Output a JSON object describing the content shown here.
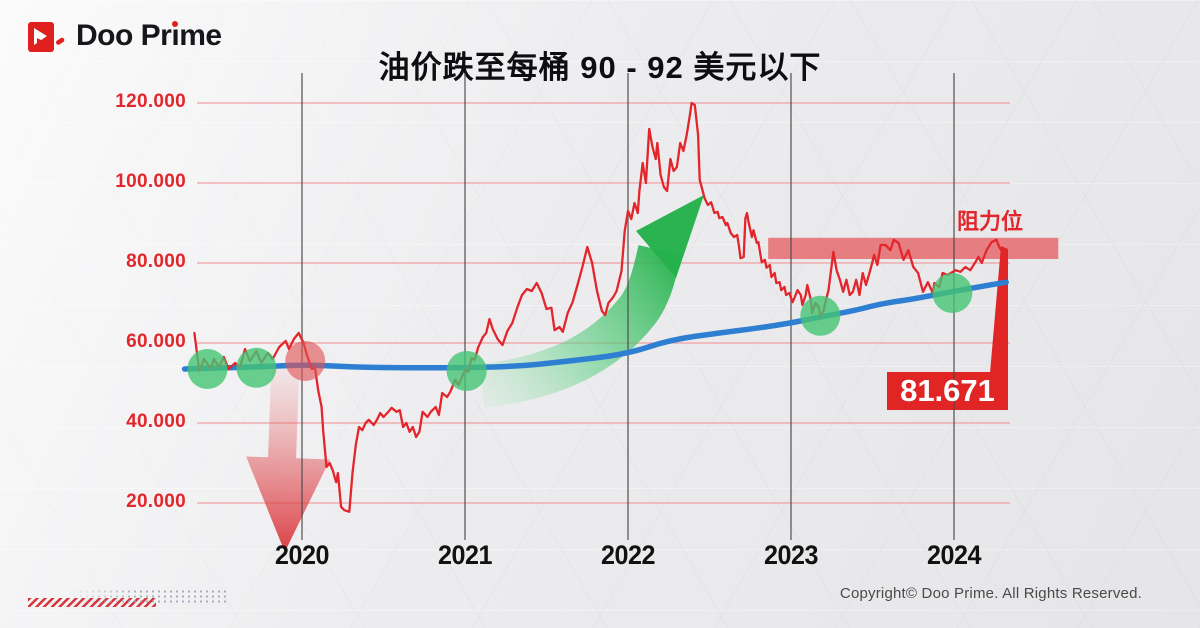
{
  "brand": {
    "name": "Doo Prime",
    "wordmark_prefix": "Doo Pr",
    "wordmark_i_stem": "ı",
    "wordmark_suffix": "me"
  },
  "title": "油价跌至每桶 90 - 92 美元以下",
  "footer": {
    "copyright": "Copyright© Doo Prime. All Rights Reserved."
  },
  "colors": {
    "accent_red": "#e2262b",
    "price_line": "#e2262b",
    "ma_line": "#2e7fd2",
    "grid_pink": "#f0a0a3",
    "vline_gray": "#4a4a4a",
    "marker_green": "#45c474",
    "marker_red": "#e05252",
    "band_red": "#e4595e",
    "callout_red": "#e02524",
    "arrow_green": "#25b14b",
    "arrow_red": "#d92d32"
  },
  "chart_data": {
    "type": "line",
    "title": "油价跌至每桶 90 - 92 美元以下",
    "xlabel": "",
    "ylabel": "",
    "y_axis": {
      "range": [
        12,
        128
      ],
      "ticks": [
        {
          "label": "120.000",
          "value": 120
        },
        {
          "label": "100.000",
          "value": 100
        },
        {
          "label": "80.000",
          "value": 80
        },
        {
          "label": "60.000",
          "value": 60
        },
        {
          "label": "40.000",
          "value": 40
        },
        {
          "label": "20.000",
          "value": 20
        }
      ]
    },
    "x_axis": {
      "range": [
        2019.28,
        2024.64
      ],
      "ticks": [
        {
          "label": "2020",
          "year": 2020
        },
        {
          "label": "2021",
          "year": 2021
        },
        {
          "label": "2022",
          "year": 2022
        },
        {
          "label": "2023",
          "year": 2023
        },
        {
          "label": "2024",
          "year": 2024
        }
      ]
    },
    "series": [
      {
        "name": "oil-price",
        "color_key": "price_line",
        "points": [
          [
            2019.34,
            62.5
          ],
          [
            2019.37,
            53
          ],
          [
            2019.4,
            56
          ],
          [
            2019.44,
            53.5
          ],
          [
            2019.46,
            56
          ],
          [
            2019.49,
            54
          ],
          [
            2019.52,
            56.5
          ],
          [
            2019.55,
            53.5
          ],
          [
            2019.59,
            55
          ],
          [
            2019.62,
            54
          ],
          [
            2019.65,
            58.5
          ],
          [
            2019.68,
            55.5
          ],
          [
            2019.72,
            58
          ],
          [
            2019.75,
            55
          ],
          [
            2019.79,
            57.5
          ],
          [
            2019.82,
            56
          ],
          [
            2019.86,
            59
          ],
          [
            2019.9,
            60.5
          ],
          [
            2019.92,
            58.5
          ],
          [
            2019.95,
            61
          ],
          [
            2019.98,
            62.5
          ],
          [
            2020.01,
            60
          ],
          [
            2020.03,
            57
          ],
          [
            2020.06,
            53.5
          ],
          [
            2020.08,
            53.8
          ],
          [
            2020.1,
            48
          ],
          [
            2020.12,
            44
          ],
          [
            2020.13,
            38
          ],
          [
            2020.15,
            29
          ],
          [
            2020.17,
            30
          ],
          [
            2020.19,
            28
          ],
          [
            2020.2,
            26.5
          ],
          [
            2020.21,
            25.2
          ],
          [
            2020.22,
            27.5
          ],
          [
            2020.24,
            19
          ],
          [
            2020.26,
            18.2
          ],
          [
            2020.29,
            17.8
          ],
          [
            2020.31,
            27.5
          ],
          [
            2020.33,
            34.5
          ],
          [
            2020.35,
            39
          ],
          [
            2020.37,
            38.2
          ],
          [
            2020.39,
            40
          ],
          [
            2020.41,
            40.8
          ],
          [
            2020.44,
            39.5
          ],
          [
            2020.46,
            40.8
          ],
          [
            2020.48,
            42.5
          ],
          [
            2020.5,
            41.5
          ],
          [
            2020.53,
            42.8
          ],
          [
            2020.55,
            43.8
          ],
          [
            2020.58,
            42.8
          ],
          [
            2020.6,
            43.2
          ],
          [
            2020.62,
            39
          ],
          [
            2020.64,
            40
          ],
          [
            2020.66,
            37.8
          ],
          [
            2020.68,
            39
          ],
          [
            2020.7,
            36.5
          ],
          [
            2020.72,
            37.8
          ],
          [
            2020.74,
            42.8
          ],
          [
            2020.77,
            41.5
          ],
          [
            2020.79,
            42.8
          ],
          [
            2020.82,
            44
          ],
          [
            2020.84,
            42
          ],
          [
            2020.86,
            47.5
          ],
          [
            2020.89,
            46.5
          ],
          [
            2020.91,
            47.8
          ],
          [
            2020.94,
            50.8
          ],
          [
            2020.96,
            49.5
          ],
          [
            2021.0,
            53.2
          ],
          [
            2021.02,
            52.8
          ],
          [
            2021.04,
            56.2
          ],
          [
            2021.06,
            55.8
          ],
          [
            2021.08,
            58.8
          ],
          [
            2021.11,
            61.5
          ],
          [
            2021.13,
            62.5
          ],
          [
            2021.15,
            66
          ],
          [
            2021.17,
            63.5
          ],
          [
            2021.2,
            61
          ],
          [
            2021.23,
            59.5
          ],
          [
            2021.26,
            63
          ],
          [
            2021.29,
            65
          ],
          [
            2021.32,
            68.8
          ],
          [
            2021.35,
            72
          ],
          [
            2021.38,
            73.5
          ],
          [
            2021.41,
            73
          ],
          [
            2021.44,
            75
          ],
          [
            2021.47,
            72.5
          ],
          [
            2021.5,
            68.5
          ],
          [
            2021.53,
            68.8
          ],
          [
            2021.55,
            63.2
          ],
          [
            2021.58,
            64
          ],
          [
            2021.6,
            62.8
          ],
          [
            2021.63,
            67.5
          ],
          [
            2021.66,
            70.2
          ],
          [
            2021.69,
            74.5
          ],
          [
            2021.72,
            79
          ],
          [
            2021.75,
            84
          ],
          [
            2021.78,
            80
          ],
          [
            2021.81,
            73
          ],
          [
            2021.84,
            68
          ],
          [
            2021.86,
            67
          ],
          [
            2021.88,
            70
          ],
          [
            2021.91,
            71.5
          ],
          [
            2021.93,
            73
          ],
          [
            2021.96,
            78
          ],
          [
            2021.98,
            88
          ],
          [
            2022.0,
            93
          ],
          [
            2022.02,
            91
          ],
          [
            2022.04,
            95
          ],
          [
            2022.06,
            92.5
          ],
          [
            2022.07,
            98
          ],
          [
            2022.09,
            105
          ],
          [
            2022.11,
            100
          ],
          [
            2022.13,
            113.5
          ],
          [
            2022.15,
            109
          ],
          [
            2022.17,
            106
          ],
          [
            2022.18,
            110
          ],
          [
            2022.2,
            102
          ],
          [
            2022.22,
            99
          ],
          [
            2022.24,
            98
          ],
          [
            2022.26,
            106
          ],
          [
            2022.28,
            103
          ],
          [
            2022.3,
            104
          ],
          [
            2022.32,
            110
          ],
          [
            2022.34,
            108
          ],
          [
            2022.36,
            112
          ],
          [
            2022.38,
            117
          ],
          [
            2022.39,
            120
          ],
          [
            2022.41,
            119.5
          ],
          [
            2022.43,
            112
          ],
          [
            2022.44,
            100.8
          ],
          [
            2022.47,
            96.2
          ],
          [
            2022.49,
            94.5
          ],
          [
            2022.51,
            95.2
          ],
          [
            2022.53,
            92.5
          ],
          [
            2022.55,
            92.8
          ],
          [
            2022.56,
            91.2
          ],
          [
            2022.58,
            91.5
          ],
          [
            2022.6,
            89.5
          ],
          [
            2022.61,
            90
          ],
          [
            2022.63,
            87.5
          ],
          [
            2022.65,
            86.5
          ],
          [
            2022.67,
            87
          ],
          [
            2022.68,
            84.5
          ],
          [
            2022.69,
            81.2
          ],
          [
            2022.71,
            81.5
          ],
          [
            2022.72,
            91.2
          ],
          [
            2022.73,
            92.5
          ],
          [
            2022.74,
            90.2
          ],
          [
            2022.76,
            86.5
          ],
          [
            2022.77,
            88.2
          ],
          [
            2022.79,
            85
          ],
          [
            2022.8,
            85.2
          ],
          [
            2022.82,
            80.2
          ],
          [
            2022.84,
            80.8
          ],
          [
            2022.85,
            78.8
          ],
          [
            2022.87,
            79.5
          ],
          [
            2022.88,
            76.5
          ],
          [
            2022.9,
            77.5
          ],
          [
            2022.91,
            75
          ],
          [
            2022.93,
            75.2
          ],
          [
            2022.94,
            73.2
          ],
          [
            2022.96,
            74
          ],
          [
            2022.97,
            72
          ],
          [
            2022.99,
            72.5
          ],
          [
            2023.01,
            70.2
          ],
          [
            2023.02,
            71.2
          ],
          [
            2023.04,
            73.2
          ],
          [
            2023.06,
            72
          ],
          [
            2023.07,
            69.5
          ],
          [
            2023.09,
            72
          ],
          [
            2023.1,
            74.5
          ],
          [
            2023.12,
            71
          ],
          [
            2023.13,
            67.5
          ],
          [
            2023.15,
            70
          ],
          [
            2023.17,
            69
          ],
          [
            2023.18,
            66.5
          ],
          [
            2023.2,
            68
          ],
          [
            2023.21,
            70
          ],
          [
            2023.23,
            73.2
          ],
          [
            2023.26,
            82.8
          ],
          [
            2023.28,
            78.2
          ],
          [
            2023.3,
            75.8
          ],
          [
            2023.32,
            72.8
          ],
          [
            2023.34,
            75.8
          ],
          [
            2023.36,
            72
          ],
          [
            2023.38,
            72.8
          ],
          [
            2023.4,
            75.8
          ],
          [
            2023.42,
            72
          ],
          [
            2023.44,
            77.5
          ],
          [
            2023.46,
            74.5
          ],
          [
            2023.49,
            78.8
          ],
          [
            2023.51,
            82
          ],
          [
            2023.53,
            79.5
          ],
          [
            2023.55,
            84.5
          ],
          [
            2023.58,
            84.5
          ],
          [
            2023.61,
            83.2
          ],
          [
            2023.63,
            85.8
          ],
          [
            2023.66,
            85
          ],
          [
            2023.69,
            80.8
          ],
          [
            2023.72,
            83.2
          ],
          [
            2023.75,
            79
          ],
          [
            2023.78,
            77.5
          ],
          [
            2023.81,
            72.8
          ],
          [
            2023.84,
            75.2
          ],
          [
            2023.87,
            72.5
          ],
          [
            2023.88,
            75
          ],
          [
            2023.91,
            74
          ],
          [
            2023.93,
            77.5
          ],
          [
            2023.96,
            77
          ],
          [
            2024.01,
            78.2
          ],
          [
            2024.04,
            77.8
          ],
          [
            2024.07,
            79
          ],
          [
            2024.1,
            78.2
          ],
          [
            2024.12,
            79.5
          ],
          [
            2024.15,
            81.5
          ],
          [
            2024.17,
            80
          ],
          [
            2024.2,
            83.2
          ],
          [
            2024.23,
            85.2
          ],
          [
            2024.26,
            85.8
          ],
          [
            2024.28,
            83.8
          ],
          [
            2024.3,
            82.5
          ],
          [
            2024.31,
            81.671
          ]
        ]
      },
      {
        "name": "moving-average",
        "color_key": "ma_line",
        "points": [
          [
            2019.28,
            53.5
          ],
          [
            2019.74,
            54
          ],
          [
            2020.02,
            54.6
          ],
          [
            2020.29,
            54
          ],
          [
            2020.6,
            53.8
          ],
          [
            2021.0,
            53.8
          ],
          [
            2021.34,
            54.2
          ],
          [
            2021.64,
            55.5
          ],
          [
            2021.99,
            57.2
          ],
          [
            2022.26,
            60.8
          ],
          [
            2022.56,
            62.5
          ],
          [
            2022.81,
            63.8
          ],
          [
            2023.0,
            65
          ],
          [
            2023.18,
            66.5
          ],
          [
            2023.4,
            68.2
          ],
          [
            2023.55,
            69.8
          ],
          [
            2023.75,
            71
          ],
          [
            2023.98,
            72.8
          ],
          [
            2024.15,
            74
          ],
          [
            2024.32,
            75.2
          ]
        ]
      }
    ],
    "markers": [
      {
        "shape": "circle",
        "color_key": "marker_green",
        "year": 2019.42,
        "value": 53.5
      },
      {
        "shape": "circle",
        "color_key": "marker_green",
        "year": 2019.72,
        "value": 53.8
      },
      {
        "shape": "circle",
        "color_key": "marker_red",
        "year": 2020.02,
        "value": 55.5
      },
      {
        "shape": "circle",
        "color_key": "marker_green",
        "year": 2021.01,
        "value": 53
      },
      {
        "shape": "circle",
        "color_key": "marker_green",
        "year": 2023.18,
        "value": 66.8
      },
      {
        "shape": "circle",
        "color_key": "marker_green",
        "year": 2023.99,
        "value": 72.5
      }
    ],
    "annotations": {
      "resistance_zone": {
        "label": "阻力位",
        "price_low": 81,
        "price_high": 86.3,
        "from_year": 2022.86,
        "to_year": 2024.64
      },
      "last_price_callout": {
        "label": "81.671",
        "value": 81.671
      },
      "crash_arrow": {
        "direction": "down",
        "at_year": 2019.9,
        "from_value": 52,
        "to_value": 9
      },
      "surge_arrow": {
        "direction": "up",
        "from_year": 2021.1,
        "from_value": 46,
        "to_year": 2022.45,
        "to_value": 97
      }
    },
    "legend": null,
    "grid": "horizontal-pink, yearly-vertical-gray"
  }
}
